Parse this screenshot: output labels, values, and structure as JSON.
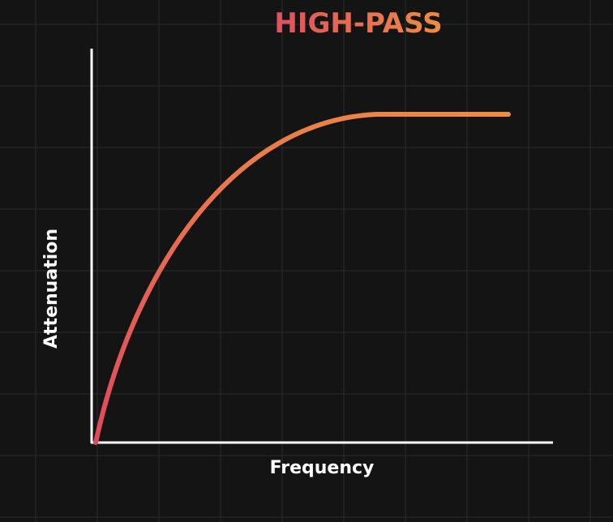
{
  "title": "HIGH-PASS",
  "x_axis_label": "Frequency",
  "y_axis_label": "Attenuation"
}
